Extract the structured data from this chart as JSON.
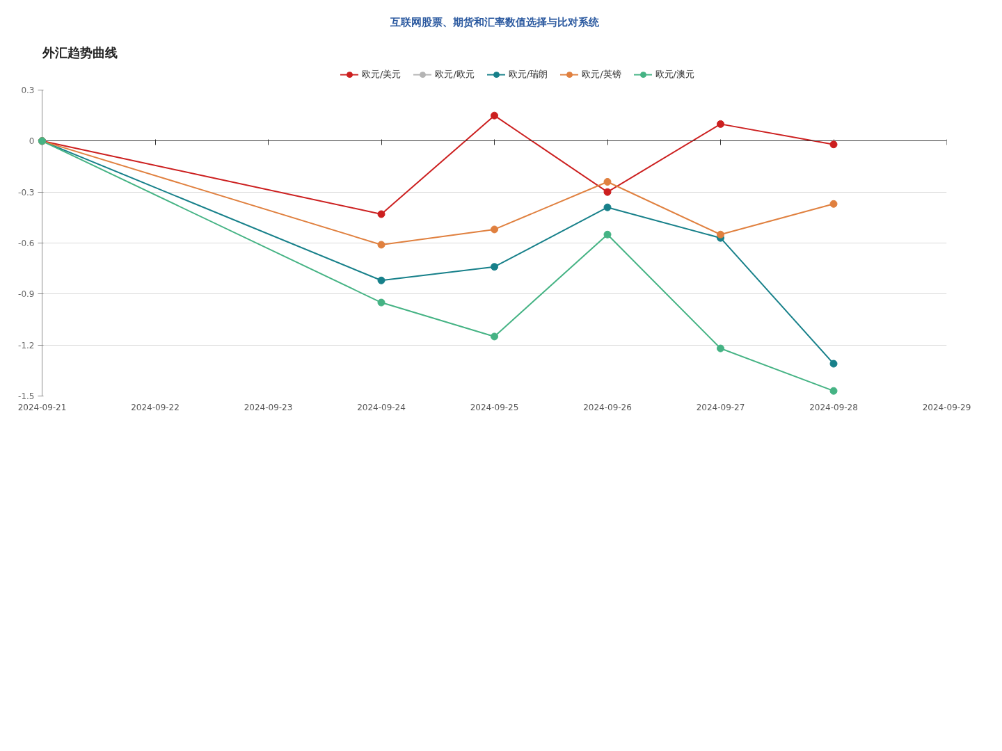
{
  "chart_data": {
    "type": "line",
    "title": "互联网股票、期货和汇率数值选择与比对系统",
    "subtitle": "外汇趋势曲线",
    "x": [
      "2024-09-21",
      "2024-09-24",
      "2024-09-25",
      "2024-09-26",
      "2024-09-27",
      "2024-09-28"
    ],
    "series": [
      {
        "name": "欧元/美元",
        "color": "#cc1f1f",
        "values": [
          0,
          -0.43,
          0.15,
          -0.3,
          0.1,
          -0.02
        ]
      },
      {
        "name": "欧元/欧元",
        "color": "#b4b4b4",
        "values": [
          null,
          null,
          null,
          null,
          null,
          null
        ]
      },
      {
        "name": "欧元/瑞朗",
        "color": "#17808a",
        "values": [
          0,
          -0.82,
          -0.74,
          -0.39,
          -0.57,
          -1.31
        ]
      },
      {
        "name": "欧元/英镑",
        "color": "#e0803f",
        "values": [
          0,
          -0.61,
          -0.52,
          -0.24,
          -0.55,
          -0.37
        ]
      },
      {
        "name": "欧元/澳元",
        "color": "#45b384",
        "values": [
          0,
          -0.95,
          -1.15,
          -0.55,
          -1.22,
          -1.47
        ]
      }
    ],
    "xlim": [
      "2024-09-21",
      "2024-09-29"
    ],
    "xticks": [
      "2024-09-21",
      "2024-09-22",
      "2024-09-23",
      "2024-09-24",
      "2024-09-25",
      "2024-09-26",
      "2024-09-27",
      "2024-09-28",
      "2024-09-29"
    ],
    "ylim": [
      -1.5,
      0.3
    ],
    "yticks": [
      0.3,
      0,
      -0.3,
      -0.6,
      -0.9,
      -1.2,
      -1.5
    ],
    "grid": "y",
    "legend": "top",
    "marker": "circle",
    "line_style": "solid"
  }
}
